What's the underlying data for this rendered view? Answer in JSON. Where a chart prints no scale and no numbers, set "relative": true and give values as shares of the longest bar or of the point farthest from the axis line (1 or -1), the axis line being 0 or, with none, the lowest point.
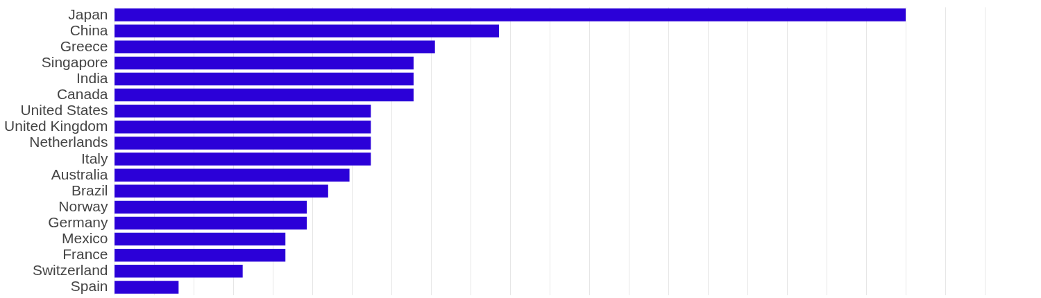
{
  "chart_data": {
    "type": "bar",
    "orientation": "horizontal",
    "relative": true,
    "grid": "x",
    "color": "#2b00d8",
    "categories": [
      "Japan",
      "China",
      "Greece",
      "Singapore",
      "India",
      "Canada",
      "United States",
      "United Kingdom",
      "Netherlands",
      "Italy",
      "Australia",
      "Brazil",
      "Norway",
      "Germany",
      "Mexico",
      "France",
      "Switzerland",
      "Spain"
    ],
    "values": [
      1,
      0.486,
      0.405,
      0.378,
      0.378,
      0.378,
      0.324,
      0.324,
      0.324,
      0.324,
      0.297,
      0.27,
      0.243,
      0.243,
      0.216,
      0.216,
      0.162,
      0.081
    ]
  }
}
